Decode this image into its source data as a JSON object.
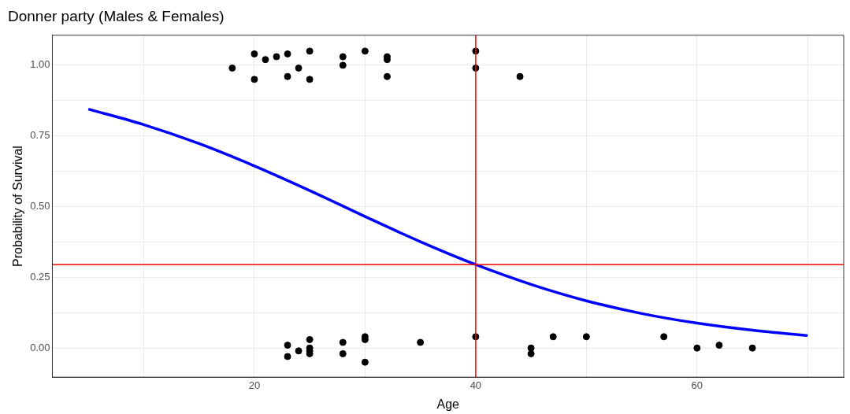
{
  "chart_data": {
    "type": "scatter",
    "title": "Donner party (Males & Females)",
    "xlabel": "Age",
    "ylabel": "Probability of Survival",
    "xlim": [
      1.75,
      73.25
    ],
    "ylim": [
      -0.103,
      1.106
    ],
    "xticks": [
      {
        "value": 10,
        "label": null
      },
      20,
      {
        "value": 30,
        "label": null
      },
      40,
      {
        "value": 50,
        "label": null
      },
      60,
      {
        "value": 70,
        "label": null
      }
    ],
    "yticks": [
      {
        "value": 0,
        "label": "0.00"
      },
      {
        "value": 0.125,
        "label": null
      },
      {
        "value": 0.25,
        "label": "0.25"
      },
      {
        "value": 0.375,
        "label": null
      },
      {
        "value": 0.5,
        "label": "0.50"
      },
      {
        "value": 0.625,
        "label": null
      },
      {
        "value": 0.75,
        "label": "0.75"
      },
      {
        "value": 0.875,
        "label": null
      },
      {
        "value": 1,
        "label": "1.00"
      }
    ],
    "grid": true,
    "legend": false,
    "marker": "circle",
    "series": [
      {
        "color": "#000000",
        "x": [
          18,
          20,
          20,
          21,
          22,
          23,
          23,
          24,
          25,
          25,
          28,
          28,
          30,
          32,
          32,
          32,
          40,
          40,
          44,
          23,
          23,
          24,
          25,
          25,
          25,
          25,
          28,
          28,
          30,
          30,
          30,
          35,
          40,
          45,
          45,
          47,
          50,
          57,
          60,
          62,
          65
        ],
        "values": [
          0.99,
          1.04,
          0.95,
          1.02,
          1.03,
          1.04,
          0.96,
          0.99,
          1.05,
          0.95,
          1.03,
          1.0,
          1.05,
          1.03,
          1.02,
          0.96,
          1.05,
          0.99,
          0.96,
          0.01,
          -0.03,
          -0.01,
          0.03,
          0.0,
          -0.01,
          -0.02,
          0.02,
          -0.02,
          0.04,
          0.03,
          -0.05,
          0.02,
          0.04,
          0.0,
          -0.02,
          0.04,
          0.04,
          0.04,
          0.0,
          0.01,
          0.0
        ]
      },
      {
        "type": "line",
        "color": "#0000ff",
        "marker": "none",
        "line_style": "solid",
        "x": [
          5,
          10,
          15,
          20,
          25,
          30,
          35,
          40,
          45,
          50,
          55,
          60,
          65,
          70
        ],
        "values": [
          0.845,
          0.79,
          0.723,
          0.644,
          0.557,
          0.465,
          0.376,
          0.295,
          0.225,
          0.167,
          0.122,
          0.088,
          0.063,
          0.044
        ]
      }
    ],
    "ref_lines": [
      {
        "axis": "x",
        "value": 40,
        "color": "#ff0000"
      },
      {
        "axis": "y",
        "value": 0.295,
        "color": "#ff0000"
      }
    ]
  }
}
